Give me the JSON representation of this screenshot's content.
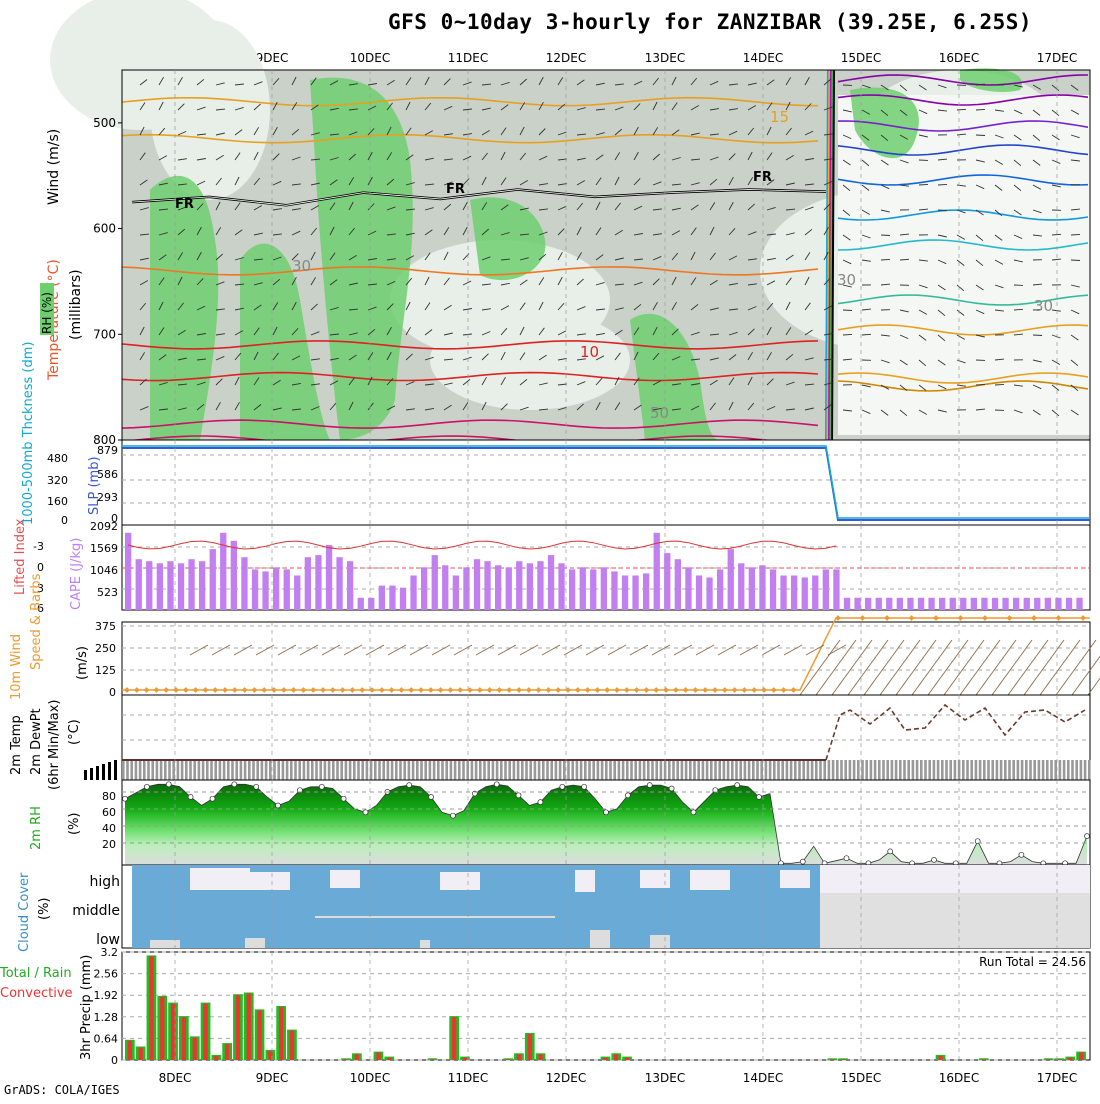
{
  "title": "GFS 0~10day 3-hourly for ZANZIBAR (39.25E, 6.25S)",
  "credit": "GrADS: COLA/IGES",
  "dates": [
    "8DEC",
    "9DEC",
    "10DEC",
    "11DEC",
    "12DEC",
    "13DEC",
    "14DEC",
    "15DEC",
    "16DEC",
    "17DEC"
  ],
  "colors": {
    "rh_green": "#6fcf6f",
    "rh_dark": "#c9d1c9",
    "cape": "#c27ff0",
    "precip_total": "#22bb22",
    "precip_conv": "#ee3333",
    "cloud": "#6aaad6",
    "wind10": "#ee9933",
    "slp": "#3a57d8",
    "thick": "#11aacc"
  },
  "panels": {
    "upper": {
      "ylabel_wind": "Wind (m/s)",
      "ylabel_temp": "Temperature (°C)",
      "ylabel_press": "(millibars)",
      "ylabel_rh": "RH (%)",
      "yticks": [
        "500",
        "600",
        "700",
        "800"
      ],
      "contour_labels": [
        "FR",
        "FR",
        "FR",
        "10",
        "15",
        "30",
        "30",
        "30",
        "50"
      ],
      "chart_data": {
        "type": "line",
        "ylim": [
          450,
          800
        ],
        "freezing_level_mb": [
          575,
          570,
          578,
          566,
          572,
          563,
          570,
          566,
          563,
          565
        ],
        "temp_isotherms_c": [
          15,
          10,
          30
        ]
      }
    },
    "slp": {
      "ylabel_thick": "1000-500mb Thckness (dm)",
      "ylabel_slp": "SLP (mb)",
      "yticks_left": [
        "480",
        "320",
        "160",
        "0"
      ],
      "yticks_right": [
        "879",
        "586",
        "293",
        "0"
      ],
      "chart_data": {
        "type": "line",
        "series": [
          {
            "name": "SLP",
            "values_before_14DEC": 879,
            "values_after_15DEC": 0
          }
        ]
      }
    },
    "cape": {
      "ylabel_li": "Lifted Index",
      "ylabel_cape": "CAPE (J/kg)",
      "yticks_left": [
        "-3",
        "0",
        "3",
        "6"
      ],
      "yticks_right": [
        "2092",
        "1569",
        "1046",
        "523"
      ],
      "chart_data": {
        "type": "bar",
        "ylim": [
          0,
          2092
        ],
        "values": [
          1900,
          1250,
          1200,
          1150,
          1200,
          1150,
          1250,
          1200,
          1500,
          1900,
          1700,
          1300,
          1000,
          950,
          1050,
          1000,
          850,
          1300,
          1350,
          1600,
          1300,
          1200,
          300,
          300,
          600,
          600,
          550,
          850,
          1050,
          1350,
          1100,
          850,
          1050,
          1250,
          1200,
          1100,
          1050,
          1200,
          1150,
          1200,
          1350,
          1150,
          1000,
          1050,
          1000,
          1050,
          950,
          850,
          850,
          900,
          1900,
          1400,
          1250,
          1050,
          850,
          800,
          1000,
          1500,
          1150,
          1050,
          1100,
          1000,
          850,
          850,
          800,
          850,
          1000,
          1000,
          300,
          300,
          300,
          300,
          300,
          300,
          300,
          300,
          300,
          300,
          300,
          300,
          300,
          300,
          300,
          300,
          300,
          300,
          300,
          300,
          300,
          300,
          300
        ]
      }
    },
    "wind10": {
      "ylabel1": "10m Wind",
      "ylabel2": "Speed & Barbs",
      "ylabel3": "(m/s)",
      "yticks": [
        "375",
        "250",
        "125",
        "0"
      ],
      "chart_data": {
        "type": "line",
        "ylim": [
          0,
          375
        ],
        "series": [
          {
            "name": "speed",
            "before": 0,
            "after": 375
          }
        ]
      }
    },
    "temp2m": {
      "ylabel1": "2m Temp",
      "ylabel2": "2m DewPt",
      "ylabel3": "(6hr Min/Max)",
      "ylabel4": "(°C)"
    },
    "rh2m": {
      "ylabel1": "2m RH",
      "ylabel2": "(%)",
      "yticks": [
        "80",
        "60",
        "40",
        "20"
      ],
      "chart_data": {
        "type": "area",
        "ylim": [
          0,
          100
        ],
        "values": [
          78,
          85,
          92,
          95,
          95,
          92,
          80,
          70,
          78,
          92,
          95,
          95,
          92,
          80,
          70,
          75,
          88,
          92,
          92,
          90,
          78,
          66,
          62,
          70,
          86,
          92,
          94,
          92,
          80,
          62,
          58,
          64,
          84,
          92,
          95,
          93,
          82,
          70,
          74,
          88,
          92,
          94,
          92,
          78,
          62,
          66,
          82,
          92,
          94,
          94,
          90,
          74,
          62,
          75,
          88,
          92,
          94,
          92,
          80,
          84,
          2,
          2,
          4,
          22,
          2,
          5,
          8,
          2,
          2,
          6,
          16,
          4,
          2,
          2,
          6,
          2,
          2,
          2,
          28,
          2,
          2,
          4,
          12,
          4,
          2,
          2,
          2,
          2,
          34
        ]
      }
    },
    "cloud": {
      "ylabel": "Cloud Cover",
      "ylabel2": "(%)",
      "levels": [
        "high",
        "middle",
        "low"
      ]
    },
    "precip": {
      "ylabel1": "Total / Rain",
      "ylabel2": "Convective",
      "ylabel3": "3hr Precip (mm)",
      "yticks": [
        "3.2",
        "2.56",
        "1.92",
        "1.28",
        "0.64",
        "0"
      ],
      "run_total": "Run Total = 24.56",
      "chart_data": {
        "type": "bar",
        "ylim": [
          0,
          3.2
        ],
        "values": [
          0.6,
          0.4,
          3.1,
          1.9,
          1.7,
          1.3,
          0.7,
          1.7,
          0.15,
          0.5,
          1.95,
          2.0,
          1.5,
          0.3,
          1.6,
          0.9,
          0,
          0,
          0,
          0,
          0.05,
          0.2,
          0,
          0.25,
          0.1,
          0,
          0,
          0,
          0.05,
          0,
          1.3,
          0.1,
          0,
          0,
          0,
          0.05,
          0.2,
          0.8,
          0.2,
          0,
          0,
          0,
          0,
          0,
          0.1,
          0.2,
          0.1,
          0,
          0,
          0,
          0,
          0,
          0,
          0,
          0,
          0,
          0,
          0,
          0,
          0,
          0,
          0,
          0,
          0,
          0,
          0.05,
          0.05,
          0,
          0,
          0,
          0,
          0,
          0,
          0,
          0,
          0.15,
          0,
          0,
          0,
          0.05,
          0,
          0,
          0,
          0,
          0,
          0.05,
          0.05,
          0.1,
          0.25
        ]
      }
    }
  }
}
